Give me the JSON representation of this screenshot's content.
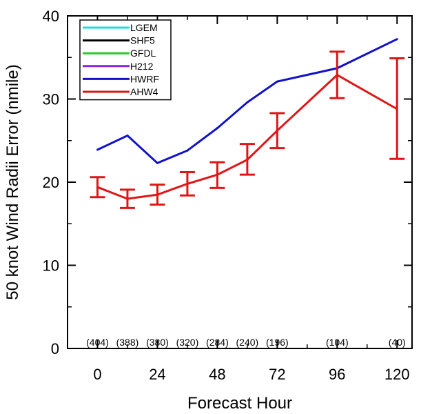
{
  "chart_data": {
    "type": "line",
    "xlabel": "Forecast Hour",
    "ylabel": "50 knot Wind Radii Error (nmile)",
    "xlim": [
      -12,
      126
    ],
    "ylim": [
      0,
      40
    ],
    "x_ticks": [
      0,
      24,
      48,
      72,
      96,
      120
    ],
    "x_tick_labels": [
      "0",
      "24",
      "48",
      "72",
      "96",
      "120"
    ],
    "y_ticks": [
      0,
      10,
      20,
      30,
      40
    ],
    "y_tick_labels": [
      "0",
      "10",
      "20",
      "30",
      "40"
    ],
    "grid": false,
    "legend_position": "top-left",
    "legend": [
      {
        "name": "LGEM",
        "color": "#22dddd"
      },
      {
        "name": "SHF5",
        "color": "#000000"
      },
      {
        "name": "GFDL",
        "color": "#22cc22"
      },
      {
        "name": "H212",
        "color": "#8822dd"
      },
      {
        "name": "HWRF",
        "color": "#1111cc"
      },
      {
        "name": "AHW4",
        "color": "#e01515"
      }
    ],
    "series": [
      {
        "name": "HWRF",
        "color": "#1111cc",
        "x": [
          0,
          12,
          24,
          36,
          48,
          60,
          72,
          96,
          120
        ],
        "y": [
          23.9,
          25.6,
          22.3,
          23.8,
          26.5,
          29.6,
          32.1,
          33.7,
          37.2
        ]
      },
      {
        "name": "AHW4",
        "color": "#e01515",
        "x": [
          0,
          12,
          24,
          36,
          48,
          60,
          72,
          96,
          120
        ],
        "y": [
          19.4,
          18.0,
          18.5,
          19.8,
          20.9,
          22.7,
          26.2,
          32.9,
          28.8
        ],
        "error_low": [
          18.2,
          16.9,
          17.3,
          18.4,
          19.3,
          20.9,
          24.1,
          30.1,
          22.8
        ],
        "error_high": [
          20.6,
          19.1,
          19.7,
          21.2,
          22.4,
          24.6,
          28.3,
          35.7,
          34.9
        ]
      }
    ],
    "sample_counts": [
      {
        "x": 0,
        "label": "(404)"
      },
      {
        "x": 12,
        "label": "(388)"
      },
      {
        "x": 24,
        "label": "(380)"
      },
      {
        "x": 36,
        "label": "(320)"
      },
      {
        "x": 48,
        "label": "(284)"
      },
      {
        "x": 60,
        "label": "(240)"
      },
      {
        "x": 72,
        "label": "(196)"
      },
      {
        "x": 96,
        "label": "(104)"
      },
      {
        "x": 120,
        "label": "(40)"
      }
    ]
  }
}
